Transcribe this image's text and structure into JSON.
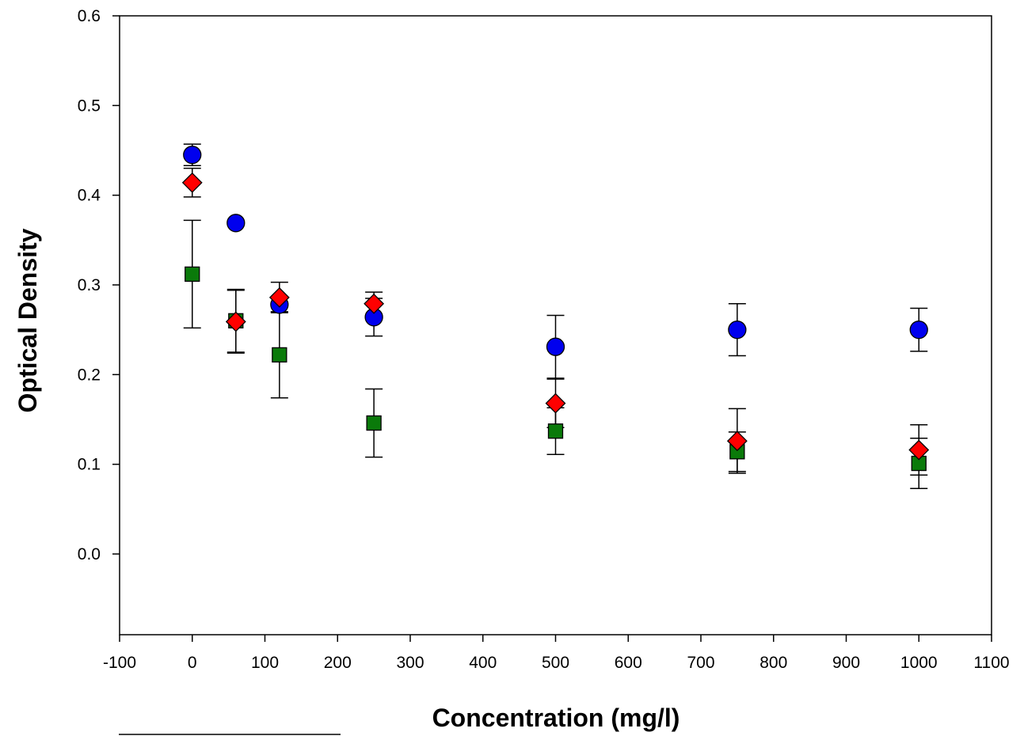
{
  "chart_data": {
    "type": "scatter",
    "title": "",
    "xlabel": "Concentration (mg/l)",
    "ylabel": "Optical Density",
    "xlim": [
      -100,
      1100
    ],
    "ylim": [
      -0.09,
      0.6
    ],
    "xticks": [
      -100,
      0,
      100,
      200,
      300,
      400,
      500,
      600,
      700,
      800,
      900,
      1000,
      1100
    ],
    "yticks": [
      0.0,
      0.1,
      0.2,
      0.3,
      0.4,
      0.5,
      0.6
    ],
    "xtick_labels": [
      "-100",
      "0",
      "100",
      "200",
      "300",
      "400",
      "500",
      "600",
      "700",
      "800",
      "900",
      "1000",
      "1100"
    ],
    "ytick_labels": [
      "0.0",
      "0.1",
      "0.2",
      "0.3",
      "0.4",
      "0.5",
      "0.6"
    ],
    "grid": false,
    "legend": "none",
    "series": [
      {
        "marker": "square",
        "color": "#0a7a0a",
        "points": [
          {
            "x": 0,
            "y": 0.312,
            "err": 0.06
          },
          {
            "x": 60,
            "y": 0.26,
            "err": 0.035
          },
          {
            "x": 120,
            "y": 0.222,
            "err": 0.048
          },
          {
            "x": 250,
            "y": 0.146,
            "err": 0.038
          },
          {
            "x": 500,
            "y": 0.137,
            "err": 0.026
          },
          {
            "x": 750,
            "y": 0.114,
            "err": 0.022
          },
          {
            "x": 1000,
            "y": 0.101,
            "err": 0.028
          }
        ]
      },
      {
        "marker": "circle",
        "color": "#0000ee",
        "points": [
          {
            "x": 0,
            "y": 0.445,
            "err": 0.012
          },
          {
            "x": 60,
            "y": 0.369,
            "err": 0
          },
          {
            "x": 120,
            "y": 0.278,
            "err": 0.008
          },
          {
            "x": 250,
            "y": 0.264,
            "err": 0.021
          },
          {
            "x": 500,
            "y": 0.231,
            "err": 0.035
          },
          {
            "x": 750,
            "y": 0.25,
            "err": 0.029
          },
          {
            "x": 1000,
            "y": 0.25,
            "err": 0.024
          }
        ]
      },
      {
        "marker": "diamond",
        "color": "#ff0000",
        "points": [
          {
            "x": 0,
            "y": 0.414,
            "err": 0.016
          },
          {
            "x": 60,
            "y": 0.259,
            "err": 0.035
          },
          {
            "x": 120,
            "y": 0.286,
            "err": 0.017
          },
          {
            "x": 250,
            "y": 0.279,
            "err": 0.013
          },
          {
            "x": 500,
            "y": 0.168,
            "err": 0.027
          },
          {
            "x": 750,
            "y": 0.126,
            "err": 0.036
          },
          {
            "x": 1000,
            "y": 0.116,
            "err": 0.028
          }
        ]
      }
    ]
  }
}
